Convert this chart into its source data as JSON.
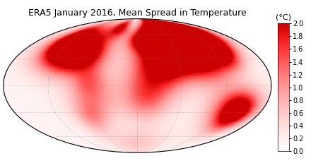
{
  "title": "ERA5 January 2016, Mean Spread in Temperature",
  "colorbar_label": "(°C)",
  "colorbar_ticks": [
    0,
    0.2,
    0.4,
    0.6,
    0.8,
    1,
    1.2,
    1.4,
    1.6,
    1.8,
    2
  ],
  "vmin": 0,
  "vmax": 2,
  "title_fontsize": 9,
  "figsize": [
    4.74,
    2.38
  ],
  "dpi": 100
}
